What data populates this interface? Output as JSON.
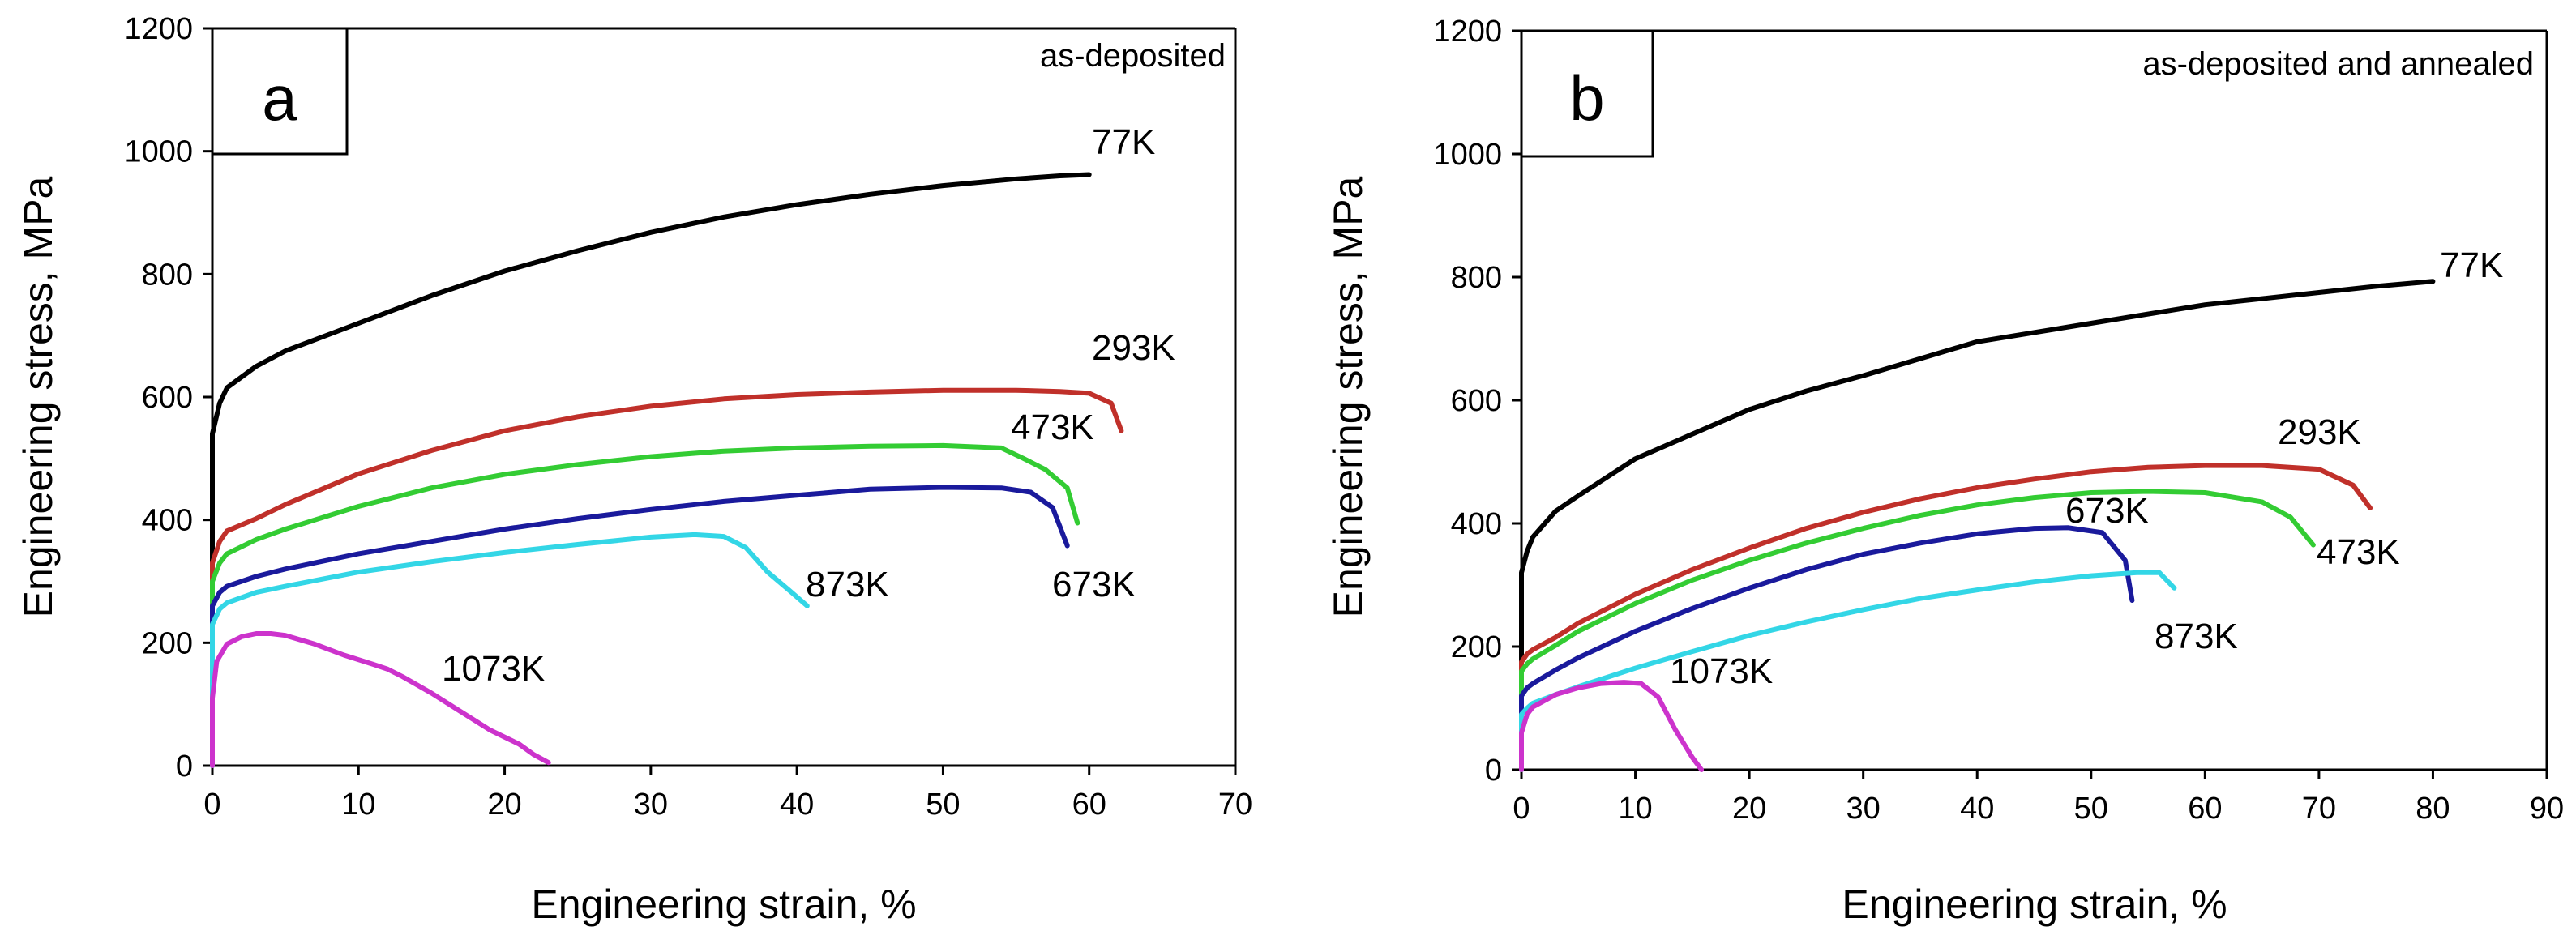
{
  "chart_data": [
    {
      "type": "line",
      "panel": "a",
      "title": "as-deposited",
      "xlabel": "Engineering strain, %",
      "ylabel": "Engineering stress, MPa",
      "xlim": [
        0,
        70
      ],
      "ylim": [
        0,
        1200
      ],
      "xticks": [
        "0",
        "10",
        "20",
        "30",
        "40",
        "50",
        "60",
        "70"
      ],
      "yticks": [
        "0",
        "200",
        "400",
        "600",
        "800",
        "1000",
        "1200"
      ],
      "series": [
        {
          "name": "77K",
          "color": "#000000",
          "x": [
            0,
            0,
            0.5,
            1,
            3,
            5,
            10,
            15,
            20,
            25,
            30,
            35,
            40,
            45,
            50,
            55,
            58,
            60
          ],
          "y": [
            0,
            540,
            590,
            615,
            650,
            675,
            720,
            765,
            805,
            838,
            868,
            893,
            913,
            930,
            944,
            955,
            960,
            962
          ]
        },
        {
          "name": "293K",
          "color": "#c0302a",
          "x": [
            0,
            0,
            0.5,
            1,
            3,
            5,
            10,
            15,
            20,
            25,
            30,
            35,
            40,
            45,
            50,
            55,
            58,
            60,
            61.5,
            62.2
          ],
          "y": [
            0,
            330,
            365,
            382,
            402,
            425,
            475,
            513,
            545,
            568,
            585,
            597,
            604,
            608,
            611,
            611,
            609,
            606,
            590,
            545
          ]
        },
        {
          "name": "473K",
          "color": "#33cc33",
          "x": [
            0,
            0,
            0.5,
            1,
            3,
            5,
            10,
            15,
            20,
            25,
            30,
            35,
            40,
            45,
            50,
            54,
            55.5,
            57,
            58.5,
            59.2
          ],
          "y": [
            0,
            300,
            330,
            345,
            368,
            385,
            422,
            452,
            474,
            490,
            503,
            512,
            517,
            520,
            521,
            517,
            500,
            482,
            452,
            395
          ]
        },
        {
          "name": "673K",
          "color": "#1a1a9c",
          "x": [
            0,
            0,
            0.5,
            1,
            3,
            5,
            10,
            15,
            20,
            25,
            30,
            35,
            40,
            45,
            50,
            54,
            56,
            57.5,
            58.5
          ],
          "y": [
            0,
            260,
            282,
            292,
            308,
            320,
            345,
            365,
            385,
            402,
            417,
            430,
            440,
            450,
            453,
            452,
            445,
            420,
            358
          ]
        },
        {
          "name": "873K",
          "color": "#33d6e6",
          "x": [
            0,
            0,
            0.5,
            1,
            3,
            5,
            10,
            15,
            20,
            25,
            30,
            33,
            35,
            36.5,
            38,
            39.5,
            40.7
          ],
          "y": [
            0,
            230,
            255,
            265,
            282,
            292,
            315,
            332,
            347,
            360,
            372,
            376,
            373,
            355,
            315,
            285,
            260
          ]
        },
        {
          "name": "1073K",
          "color": "#cc33cc",
          "x": [
            0,
            0,
            0.3,
            1,
            2,
            3,
            4,
            5,
            7,
            9,
            11,
            12,
            13,
            15,
            17,
            19,
            21,
            22,
            23
          ],
          "y": [
            0,
            110,
            170,
            198,
            210,
            215,
            215,
            212,
            198,
            180,
            165,
            157,
            145,
            118,
            88,
            58,
            35,
            18,
            5
          ]
        }
      ],
      "labels": [
        "77K",
        "293K",
        "473K",
        "673K",
        "873K",
        "1073K"
      ]
    },
    {
      "type": "line",
      "panel": "b",
      "title": "as-deposited and annealed",
      "xlabel": "Engineering strain, %",
      "ylabel": "Engineering stress, MPa",
      "xlim": [
        0,
        90
      ],
      "ylim": [
        0,
        1200
      ],
      "xticks": [
        "0",
        "10",
        "20",
        "30",
        "40",
        "50",
        "60",
        "70",
        "80",
        "90"
      ],
      "yticks": [
        "0",
        "200",
        "400",
        "600",
        "800",
        "1000",
        "1200"
      ],
      "series": [
        {
          "name": "77K",
          "color": "#000000",
          "x": [
            0,
            0,
            0.5,
            1,
            3,
            5,
            10,
            15,
            20,
            25,
            30,
            40,
            50,
            60,
            70,
            75,
            80
          ],
          "y": [
            0,
            320,
            355,
            378,
            420,
            445,
            505,
            545,
            585,
            615,
            640,
            695,
            725,
            755,
            775,
            785,
            793
          ]
        },
        {
          "name": "293K",
          "color": "#c0302a",
          "x": [
            0,
            0,
            0.5,
            1,
            3,
            5,
            10,
            15,
            20,
            25,
            30,
            35,
            40,
            45,
            50,
            55,
            60,
            65,
            70,
            73,
            74.5
          ],
          "y": [
            0,
            175,
            188,
            195,
            215,
            238,
            285,
            325,
            360,
            392,
            418,
            440,
            458,
            472,
            484,
            491,
            494,
            494,
            488,
            462,
            425
          ]
        },
        {
          "name": "473K",
          "color": "#33cc33",
          "x": [
            0,
            0,
            0.5,
            1,
            3,
            5,
            10,
            15,
            20,
            25,
            30,
            35,
            40,
            45,
            50,
            55,
            60,
            65,
            67.5,
            69.5
          ],
          "y": [
            0,
            160,
            172,
            180,
            202,
            225,
            270,
            308,
            340,
            368,
            392,
            413,
            430,
            442,
            450,
            452,
            450,
            435,
            410,
            365
          ]
        },
        {
          "name": "673K",
          "color": "#1a1a9c",
          "x": [
            0,
            0,
            0.5,
            1,
            3,
            5,
            10,
            15,
            20,
            25,
            30,
            35,
            40,
            45,
            48,
            51,
            53,
            53.6
          ],
          "y": [
            0,
            120,
            133,
            140,
            162,
            182,
            225,
            262,
            295,
            325,
            350,
            368,
            383,
            392,
            393,
            385,
            340,
            275
          ]
        },
        {
          "name": "873K",
          "color": "#33d6e6",
          "x": [
            0,
            0,
            0.5,
            1,
            3,
            5,
            10,
            15,
            20,
            25,
            30,
            35,
            40,
            45,
            50,
            54,
            56,
            57.3
          ],
          "y": [
            0,
            90,
            100,
            108,
            122,
            135,
            165,
            192,
            218,
            240,
            260,
            278,
            292,
            305,
            315,
            320,
            320,
            295
          ]
        },
        {
          "name": "1073K",
          "color": "#cc33cc",
          "x": [
            0,
            0,
            0.5,
            1,
            3,
            5,
            7,
            9,
            10.5,
            12,
            13.5,
            15,
            15.8
          ],
          "y": [
            0,
            60,
            90,
            102,
            122,
            133,
            140,
            142,
            140,
            118,
            65,
            20,
            0
          ]
        }
      ],
      "labels": [
        "77K",
        "293K",
        "473K",
        "673K",
        "873K",
        "1073K"
      ]
    }
  ]
}
